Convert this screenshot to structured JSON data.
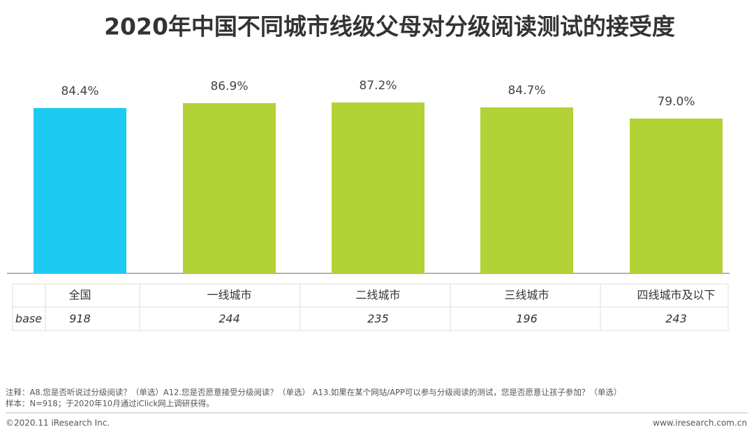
{
  "chart_data": {
    "type": "bar",
    "title": "2020年中国不同城市线级父母对分级阅读测试的接受度",
    "categories": [
      "全国",
      "一线城市",
      "二线城市",
      "三线城市",
      "四线城市及以下"
    ],
    "values": [
      84.4,
      86.9,
      87.2,
      84.7,
      79.0
    ],
    "value_labels": [
      "84.4%",
      "86.9%",
      "87.2%",
      "84.7%",
      "79.0%"
    ],
    "colors": [
      "#1ecbf0",
      "#b2d235",
      "#b2d235",
      "#b2d235",
      "#b2d235"
    ]
  },
  "table": {
    "row_label": "base",
    "values": [
      918,
      244,
      235,
      196,
      243
    ]
  },
  "notes": [
    "注释：A8.您是否听说过分级阅读？（单选）A12.您是否愿意接受分级阅读？（单选） A13.如果在某个网站/APP可以参与分级阅读的测试，您是否愿意让孩子参加？（单选）",
    "样本：N=918；于2020年10月通过iClick网上调研获得。"
  ],
  "footer": {
    "copyright": "©2020.11 iResearch Inc.",
    "url": "www.iresearch.com.cn"
  }
}
